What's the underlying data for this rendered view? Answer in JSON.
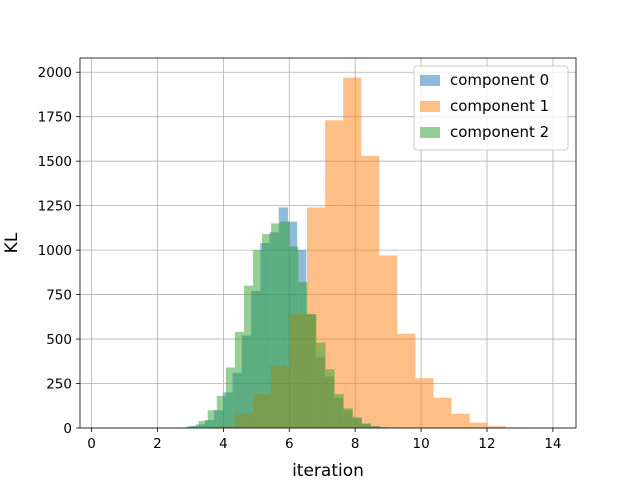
{
  "chart_data": {
    "type": "bar",
    "title": "",
    "xlabel": "iteration",
    "ylabel": "KL",
    "xlim": [
      -0.35,
      14.7
    ],
    "ylim": [
      0,
      2080
    ],
    "xticks": [
      0,
      2,
      4,
      6,
      8,
      10,
      12,
      14
    ],
    "yticks": [
      0,
      250,
      500,
      750,
      1000,
      1250,
      1500,
      1750,
      2000
    ],
    "grid": true,
    "legend_position": "top-right",
    "series": [
      {
        "name": "component 0",
        "color": "#1f77b4",
        "bin_start": 2.6,
        "bin_width": 0.28,
        "values": [
          2,
          8,
          20,
          45,
          100,
          200,
          310,
          520,
          770,
          1040,
          1100,
          1240,
          1160,
          1000,
          640,
          400,
          290,
          170,
          100,
          55,
          25,
          10,
          4,
          1
        ]
      },
      {
        "name": "component 1",
        "color": "#ff7f0e",
        "bin_start": 3.8,
        "bin_width": 0.548,
        "values": [
          10,
          80,
          190,
          350,
          640,
          1240,
          1730,
          1970,
          1530,
          970,
          530,
          280,
          170,
          80,
          30,
          10,
          3
        ]
      },
      {
        "name": "component 2",
        "color": "#2ca02c",
        "bin_start": 2.7,
        "bin_width": 0.275,
        "values": [
          3,
          12,
          40,
          100,
          180,
          340,
          540,
          800,
          1000,
          1090,
          1150,
          1160,
          1020,
          820,
          640,
          480,
          330,
          190,
          110,
          60,
          25,
          10,
          4,
          1
        ]
      }
    ]
  }
}
